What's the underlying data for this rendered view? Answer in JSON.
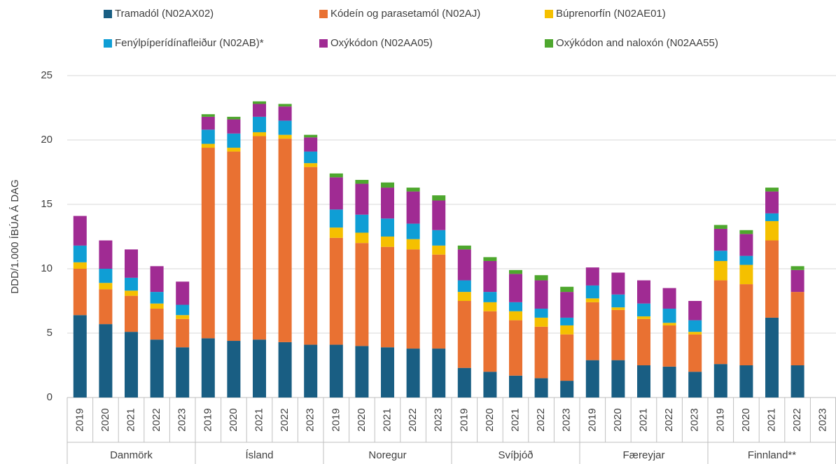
{
  "chart_data": {
    "type": "stacked_bar",
    "y_label": "DDD/1.000 ÍBÚA Á DAG",
    "categories": [
      "2019",
      "2020",
      "2021",
      "2022",
      "2023",
      "2019",
      "2020",
      "2021",
      "2022",
      "2023",
      "2019",
      "2020",
      "2021",
      "2022",
      "2023",
      "2019",
      "2020",
      "2021",
      "2022",
      "2023",
      "2019",
      "2020",
      "2021",
      "2022",
      "2023",
      "2019",
      "2020",
      "2021",
      "2022",
      "2023"
    ],
    "groups": [
      "Danmörk",
      "Ísland",
      "Noregur",
      "Svíþjóð",
      "Færeyjar",
      "Finnland**"
    ],
    "series": [
      {
        "name": "Tramadól (N02AX02)",
        "color": "#195e83",
        "values": [
          6.4,
          5.7,
          5.1,
          4.5,
          3.9,
          4.6,
          4.4,
          4.5,
          4.3,
          4.1,
          4.1,
          4.0,
          3.9,
          3.8,
          3.8,
          2.3,
          2.0,
          1.7,
          1.5,
          1.3,
          2.9,
          2.9,
          2.5,
          2.4,
          2.0,
          2.6,
          2.5,
          6.2,
          2.5,
          null
        ]
      },
      {
        "name": "Kódeín og parasetamól (N02AJ)",
        "color": "#e97132",
        "values": [
          3.6,
          2.7,
          2.8,
          2.4,
          2.2,
          14.8,
          14.7,
          15.8,
          15.8,
          13.8,
          8.3,
          8.0,
          7.8,
          7.7,
          7.3,
          5.2,
          4.7,
          4.3,
          4.0,
          3.6,
          4.5,
          3.9,
          3.6,
          3.2,
          2.9,
          6.5,
          6.3,
          6.0,
          5.7,
          null
        ]
      },
      {
        "name": "Búprenorfín (N02AE01)",
        "color": "#f5c000",
        "values": [
          0.5,
          0.5,
          0.4,
          0.4,
          0.3,
          0.3,
          0.3,
          0.3,
          0.3,
          0.3,
          0.8,
          0.8,
          0.8,
          0.8,
          0.7,
          0.7,
          0.7,
          0.7,
          0.7,
          0.7,
          0.3,
          0.2,
          0.2,
          0.2,
          0.2,
          1.5,
          1.5,
          1.5,
          0,
          null
        ]
      },
      {
        "name": "Fenýlpíperídínafleiður (N02AB)*",
        "color": "#0f9ed5",
        "values": [
          1.3,
          1.1,
          1.0,
          0.9,
          0.8,
          1.1,
          1.1,
          1.2,
          1.1,
          0.9,
          1.4,
          1.4,
          1.4,
          1.2,
          1.2,
          0.9,
          0.8,
          0.7,
          0.7,
          0.6,
          1.0,
          1.0,
          1.0,
          1.1,
          0.9,
          0.8,
          0.7,
          0.6,
          0,
          null
        ]
      },
      {
        "name": "Oxýkódon (N02AA05)",
        "color": "#a02b93",
        "values": [
          2.3,
          2.2,
          2.2,
          2.0,
          1.8,
          1.0,
          1.1,
          1.0,
          1.1,
          1.1,
          2.5,
          2.4,
          2.4,
          2.5,
          2.3,
          2.4,
          2.4,
          2.2,
          2.2,
          2.0,
          1.4,
          1.7,
          1.8,
          1.6,
          1.5,
          1.7,
          1.7,
          1.7,
          1.7,
          null
        ]
      },
      {
        "name": "Oxýkódon and naloxón (N02AA55)",
        "color": "#4ea72e",
        "values": [
          0,
          0,
          0,
          0,
          0,
          0.2,
          0.2,
          0.2,
          0.2,
          0.2,
          0.3,
          0.3,
          0.4,
          0.3,
          0.4,
          0.3,
          0.3,
          0.3,
          0.4,
          0.4,
          0,
          0,
          0,
          0,
          0,
          0.3,
          0.3,
          0.3,
          0.3,
          null
        ]
      }
    ],
    "ylim": [
      0,
      25
    ],
    "yticks": [
      0,
      5,
      10,
      15,
      20,
      25
    ],
    "grid": true
  }
}
